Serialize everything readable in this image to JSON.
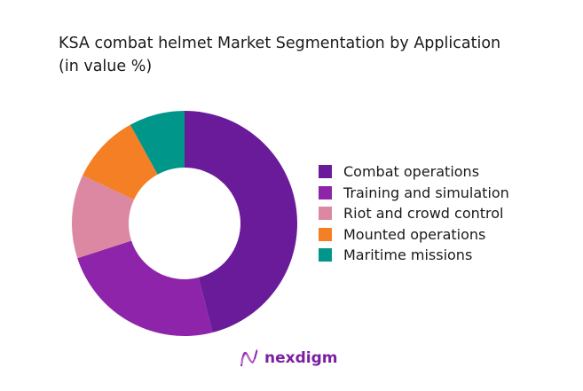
{
  "title": "KSA combat helmet Market Segmentation by Application (in value %)",
  "brand": {
    "name": "nexdigm",
    "color": "#7b1fa2"
  },
  "chart_data": {
    "type": "pie",
    "subtype": "donut",
    "title": "KSA combat helmet Market Segmentation by Application (in value %)",
    "categories": [
      "Combat operations",
      "Training and simulation",
      "Riot and crowd control",
      "Mounted operations",
      "Maritime missions"
    ],
    "values": [
      46,
      24,
      12,
      10,
      8
    ],
    "colors": [
      "#6a1b9a",
      "#8e24aa",
      "#dc88a2",
      "#f47f24",
      "#00968a"
    ],
    "legend_position": "right",
    "start_angle": 0,
    "direction": "clockwise"
  },
  "legend": [
    {
      "label": "Combat operations",
      "color": "#6a1b9a"
    },
    {
      "label": "Training and simulation",
      "color": "#8e24aa"
    },
    {
      "label": "Riot and crowd control",
      "color": "#dc88a2"
    },
    {
      "label": "Mounted operations",
      "color": "#f47f24"
    },
    {
      "label": "Maritime missions",
      "color": "#00968a"
    }
  ]
}
